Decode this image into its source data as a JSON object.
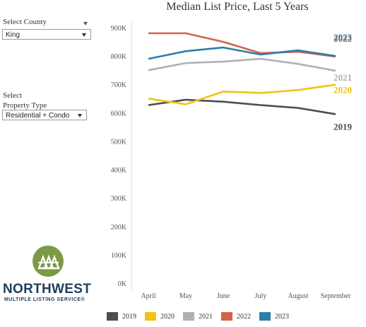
{
  "filters": {
    "county": {
      "label": "Select County",
      "value": "King"
    },
    "property_type": {
      "label_line1": "Select",
      "label_line2": "Property Type",
      "value": "Residential + Condo"
    }
  },
  "logo": {
    "name": "NORTHWEST",
    "subtitle": "MULTIPLE LISTING SERVICE®"
  },
  "colors": {
    "2019": "#4a4f4d",
    "2020": "#f1c40f",
    "2021": "#aeb2b6",
    "2022": "#d4634a",
    "2023": "#2b7fa8"
  },
  "chart_data": {
    "type": "line",
    "title": "Median List Price, Last 5 Years",
    "xlabel": "",
    "ylabel": "",
    "categories": [
      "April",
      "May",
      "June",
      "July",
      "August",
      "September"
    ],
    "y_ticks": [
      "0K",
      "100K",
      "200K",
      "300K",
      "400K",
      "500K",
      "600K",
      "700K",
      "800K",
      "900K"
    ],
    "ylim": [
      0,
      900000
    ],
    "grid": false,
    "legend": "bottom",
    "series": [
      {
        "name": "2019",
        "color": "#4a4f4d",
        "values": [
          627000,
          646000,
          639000,
          627000,
          617000,
          595000
        ]
      },
      {
        "name": "2020",
        "color": "#f1c40f",
        "values": [
          650000,
          630000,
          675000,
          670000,
          680000,
          699000
        ]
      },
      {
        "name": "2021",
        "color": "#aeb2b6",
        "values": [
          750000,
          775000,
          780000,
          790000,
          772000,
          748000
        ]
      },
      {
        "name": "2022",
        "color": "#d4634a",
        "values": [
          880000,
          880000,
          850000,
          810000,
          815000,
          798000
        ]
      },
      {
        "name": "2023",
        "color": "#2b7fa8",
        "values": [
          790000,
          817000,
          830000,
          805000,
          820000,
          800000
        ]
      }
    ]
  }
}
